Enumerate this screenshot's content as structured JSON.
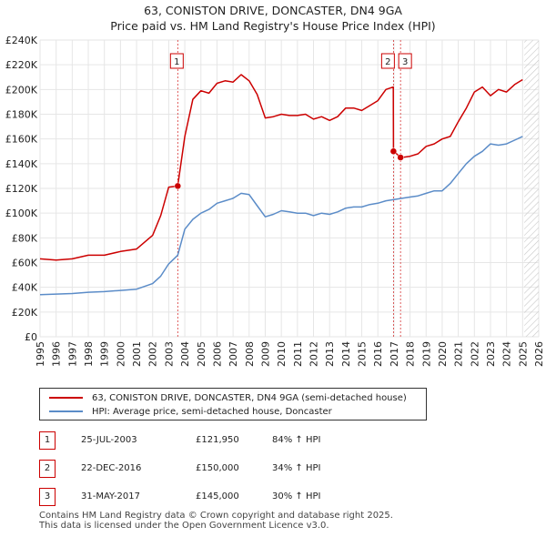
{
  "title": {
    "line1": "63, CONISTON DRIVE, DONCASTER, DN4 9GA",
    "line2": "Price paid vs. HM Land Registry's House Price Index (HPI)"
  },
  "legend": {
    "property_label": "63, CONISTON DRIVE, DONCASTER, DN4 9GA (semi-detached house)",
    "hpi_label": "HPI: Average price, semi-detached house, Doncaster"
  },
  "transactions": [
    {
      "num": "1",
      "date": "25-JUL-2003",
      "price": "£121,950",
      "hpi": "84% ↑ HPI"
    },
    {
      "num": "2",
      "date": "22-DEC-2016",
      "price": "£150,000",
      "hpi": "34% ↑ HPI"
    },
    {
      "num": "3",
      "date": "31-MAY-2017",
      "price": "£145,000",
      "hpi": "30% ↑ HPI"
    }
  ],
  "footer": {
    "line1": "Contains HM Land Registry data © Crown copyright and database right 2025.",
    "line2": "This data is licensed under the Open Government Licence v3.0."
  },
  "colors": {
    "property": "#cc0000",
    "hpi": "#5b8cc8",
    "hatch": "#cccccc",
    "grid": "#e6e6e6",
    "sale_marker": "#cc0000"
  },
  "chart_data": {
    "type": "line",
    "xlim": [
      1995,
      2026
    ],
    "ylim": [
      0,
      240000
    ],
    "x_ticks": [
      "1995",
      "1996",
      "1997",
      "1998",
      "1999",
      "2000",
      "2001",
      "2002",
      "2003",
      "2004",
      "2005",
      "2006",
      "2007",
      "2008",
      "2009",
      "2010",
      "2011",
      "2012",
      "2013",
      "2014",
      "2015",
      "2016",
      "2017",
      "2018",
      "2019",
      "2020",
      "2021",
      "2022",
      "2023",
      "2024",
      "2025",
      "2026"
    ],
    "y_ticks": [
      {
        "value": 0,
        "label": "£0"
      },
      {
        "value": 20000,
        "label": "£20K"
      },
      {
        "value": 40000,
        "label": "£40K"
      },
      {
        "value": 60000,
        "label": "£60K"
      },
      {
        "value": 80000,
        "label": "£80K"
      },
      {
        "value": 100000,
        "label": "£100K"
      },
      {
        "value": 120000,
        "label": "£120K"
      },
      {
        "value": 140000,
        "label": "£140K"
      },
      {
        "value": 160000,
        "label": "£160K"
      },
      {
        "value": 180000,
        "label": "£180K"
      },
      {
        "value": 200000,
        "label": "£200K"
      },
      {
        "value": 220000,
        "label": "£220K"
      },
      {
        "value": 240000,
        "label": "£240K"
      }
    ],
    "hatch_after": 2025.1,
    "sales": [
      {
        "label": "1",
        "x": 2003.56,
        "y": 121950
      },
      {
        "label": "2",
        "x": 2016.97,
        "y": 150000
      },
      {
        "label": "3",
        "x": 2017.41,
        "y": 145000
      }
    ],
    "series": [
      {
        "name": "63, CONISTON DRIVE, DONCASTER, DN4 9GA (semi-detached house)",
        "x": [
          1995,
          1996,
          1997,
          1998,
          1999,
          2000,
          2001,
          2002,
          2002.5,
          2003,
          2003.56,
          2004,
          2004.5,
          2005,
          2005.5,
          2006,
          2006.5,
          2007,
          2007.5,
          2008,
          2008.5,
          2009,
          2009.5,
          2010,
          2010.5,
          2011,
          2011.5,
          2012,
          2012.5,
          2013,
          2013.5,
          2014,
          2014.5,
          2015,
          2015.5,
          2016,
          2016.5,
          2016.96,
          2016.97,
          2017,
          2017.41,
          2017.5,
          2018,
          2018.5,
          2019,
          2019.5,
          2020,
          2020.5,
          2021,
          2021.5,
          2022,
          2022.5,
          2023,
          2023.5,
          2024,
          2024.5,
          2025
        ],
        "values": [
          63000,
          62000,
          63000,
          66000,
          66000,
          69000,
          71000,
          82000,
          98000,
          121000,
          121950,
          162000,
          192000,
          199000,
          197000,
          205000,
          207000,
          206000,
          212000,
          207000,
          196000,
          177000,
          178000,
          180000,
          179000,
          179000,
          180000,
          176000,
          178000,
          175000,
          178000,
          185000,
          185000,
          183000,
          187000,
          191000,
          200000,
          202000,
          150000,
          150000,
          145000,
          145000,
          146000,
          148000,
          154000,
          156000,
          160000,
          162000,
          174000,
          185000,
          198000,
          202000,
          195000,
          200000,
          198000,
          204000,
          208000
        ]
      },
      {
        "name": "HPI: Average price, semi-detached house, Doncaster",
        "x": [
          1995,
          1996,
          1997,
          1998,
          1999,
          2000,
          2001,
          2002,
          2002.5,
          2003,
          2003.56,
          2004,
          2004.5,
          2005,
          2005.5,
          2006,
          2006.5,
          2007,
          2007.5,
          2008,
          2008.5,
          2009,
          2009.5,
          2010,
          2010.5,
          2011,
          2011.5,
          2012,
          2012.5,
          2013,
          2013.5,
          2014,
          2014.5,
          2015,
          2015.5,
          2016,
          2016.5,
          2017,
          2017.5,
          2018,
          2018.5,
          2019,
          2019.5,
          2020,
          2020.5,
          2021,
          2021.5,
          2022,
          2022.5,
          2023,
          2023.5,
          2024,
          2024.5,
          2025
        ],
        "values": [
          34000,
          34500,
          35000,
          36000,
          36500,
          37500,
          38500,
          43000,
          49000,
          59000,
          66000,
          87000,
          95000,
          100000,
          103000,
          108000,
          110000,
          112000,
          116000,
          115000,
          106000,
          97000,
          99000,
          102000,
          101000,
          100000,
          100000,
          98000,
          100000,
          99000,
          101000,
          104000,
          105000,
          105000,
          107000,
          108000,
          110000,
          111000,
          112000,
          113000,
          114000,
          116000,
          118000,
          118000,
          124000,
          132000,
          140000,
          146000,
          150000,
          156000,
          155000,
          156000,
          159000,
          162000
        ]
      }
    ]
  }
}
